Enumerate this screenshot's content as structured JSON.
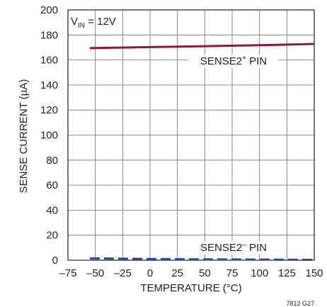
{
  "chart_data": {
    "type": "line",
    "xlabel": "TEMPERATURE (°C)",
    "ylabel": "SENSE CURRENT (µA)",
    "xlim": [
      -75,
      150
    ],
    "ylim": [
      0,
      200
    ],
    "x_ticks": [
      -75,
      -50,
      -25,
      0,
      25,
      50,
      75,
      100,
      125,
      150
    ],
    "y_ticks": [
      0,
      20,
      40,
      60,
      80,
      100,
      120,
      140,
      160,
      180,
      200
    ],
    "x_tick_labels": [
      "–75",
      "–50",
      "–25",
      "0",
      "25",
      "50",
      "75",
      "100",
      "125",
      "150"
    ],
    "y_tick_labels": [
      "0",
      "20",
      "40",
      "60",
      "80",
      "100",
      "120",
      "140",
      "160",
      "180",
      "200"
    ],
    "grid": true,
    "condition": {
      "prefix": "V",
      "subscript": "IN",
      "suffix": " = 12V"
    },
    "series": [
      {
        "name": "SENSE2+ PIN",
        "label_base": "SENSE2",
        "label_sup": "+",
        "label_tail": " PIN",
        "color": "#8b1a3a",
        "style": "solid",
        "x": [
          -55,
          0,
          50,
          100,
          150
        ],
        "y": [
          169.5,
          170.3,
          171.0,
          171.8,
          172.8
        ]
      },
      {
        "name": "SENSE2– PIN",
        "label_base": "SENSE2",
        "label_sup": "–",
        "label_tail": " PIN",
        "color": "#2e4a9a",
        "style": "dashed",
        "x": [
          -55,
          0,
          50,
          100,
          150
        ],
        "y": [
          1.5,
          1.0,
          0.7,
          0.5,
          0.3
        ]
      }
    ],
    "figure_id": "7812 G27"
  }
}
